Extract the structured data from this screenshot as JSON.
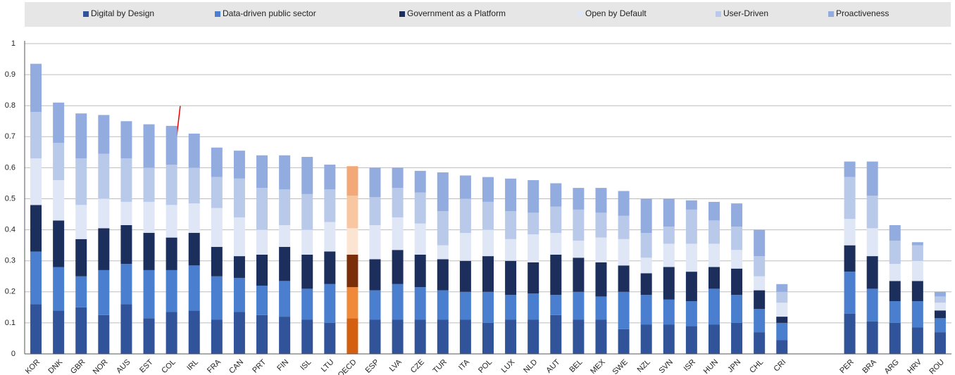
{
  "chart_data": {
    "type": "stacked_bar",
    "categories": [
      "KOR",
      "DNK",
      "GBR",
      "NOR",
      "AUS",
      "EST",
      "COL",
      "IRL",
      "FRA",
      "CAN",
      "PRT",
      "FIN",
      "ISL",
      "LTU",
      "OECD",
      "ESP",
      "LVA",
      "CZE",
      "TUR",
      "ITA",
      "POL",
      "LUX",
      "NLD",
      "AUT",
      "BEL",
      "MEX",
      "SWE",
      "NZL",
      "SVN",
      "ISR",
      "HUN",
      "JPN",
      "CHL",
      "CRI",
      null,
      null,
      "PER",
      "BRA",
      "ARG",
      "HRV",
      "ROU"
    ],
    "highlight": "OECD",
    "series": [
      {
        "name": "Digital by Design",
        "color": "#31539a",
        "highlight_color": "#d45f10",
        "values": [
          0.16,
          0.14,
          0.15,
          0.125,
          0.16,
          0.115,
          0.135,
          0.14,
          0.11,
          0.135,
          0.125,
          0.12,
          0.11,
          0.1,
          0.115,
          0.11,
          0.11,
          0.11,
          0.11,
          0.11,
          0.1,
          0.11,
          0.11,
          0.125,
          0.11,
          0.11,
          0.08,
          0.095,
          0.095,
          0.09,
          0.095,
          0.1,
          0.07,
          0.045,
          null,
          null,
          0.13,
          0.105,
          0.1,
          0.085,
          0.07
        ]
      },
      {
        "name": "Data-driven public sector",
        "color": "#4a7fd0",
        "highlight_color": "#f08a3a",
        "values": [
          0.17,
          0.14,
          0.1,
          0.145,
          0.13,
          0.155,
          0.135,
          0.145,
          0.14,
          0.11,
          0.095,
          0.115,
          0.1,
          0.125,
          0.1,
          0.095,
          0.115,
          0.105,
          0.095,
          0.09,
          0.1,
          0.08,
          0.085,
          0.065,
          0.09,
          0.075,
          0.12,
          0.095,
          0.08,
          0.08,
          0.115,
          0.09,
          0.075,
          0.055,
          null,
          null,
          0.135,
          0.105,
          0.07,
          0.085,
          0.045
        ]
      },
      {
        "name": "Government as a Platform",
        "color": "#1c2f5c",
        "highlight_color": "#7a2e0a",
        "values": [
          0.15,
          0.15,
          0.12,
          0.135,
          0.125,
          0.12,
          0.105,
          0.105,
          0.095,
          0.07,
          0.1,
          0.11,
          0.11,
          0.105,
          0.105,
          0.1,
          0.11,
          0.105,
          0.1,
          0.1,
          0.115,
          0.11,
          0.1,
          0.13,
          0.11,
          0.11,
          0.085,
          0.07,
          0.105,
          0.095,
          0.07,
          0.085,
          0.06,
          0.02,
          null,
          null,
          0.085,
          0.105,
          0.065,
          0.065,
          0.025
        ]
      },
      {
        "name": "Open by Default",
        "color": "#dfe6f5",
        "highlight_color": "#fce4d2",
        "values": [
          0.15,
          0.13,
          0.11,
          0.095,
          0.075,
          0.1,
          0.105,
          0.095,
          0.125,
          0.125,
          0.08,
          0.07,
          0.08,
          0.095,
          0.085,
          0.11,
          0.105,
          0.1,
          0.045,
          0.09,
          0.085,
          0.07,
          0.09,
          0.07,
          0.055,
          0.08,
          0.085,
          0.05,
          0.075,
          0.09,
          0.075,
          0.06,
          0.045,
          0.045,
          null,
          null,
          0.085,
          0.09,
          0.055,
          0.065,
          0.025
        ]
      },
      {
        "name": "User-Driven",
        "color": "#b9c9ea",
        "highlight_color": "#f8c6a0",
        "values": [
          0.15,
          0.12,
          0.15,
          0.145,
          0.14,
          0.11,
          0.13,
          0.115,
          0.1,
          0.125,
          0.135,
          0.115,
          0.115,
          0.105,
          0.105,
          0.09,
          0.095,
          0.1,
          0.11,
          0.11,
          0.09,
          0.09,
          0.07,
          0.085,
          0.1,
          0.08,
          0.075,
          0.08,
          0.055,
          0.11,
          0.075,
          0.075,
          0.065,
          0.035,
          null,
          null,
          0.135,
          0.105,
          0.075,
          0.05,
          0.02
        ]
      },
      {
        "name": "Proactiveness",
        "color": "#93ace0",
        "highlight_color": "#f3a878",
        "values": [
          0.155,
          0.13,
          0.145,
          0.125,
          0.12,
          0.14,
          0.125,
          0.11,
          0.095,
          0.09,
          0.105,
          0.11,
          0.12,
          0.08,
          0.095,
          0.095,
          0.065,
          0.07,
          0.125,
          0.075,
          0.08,
          0.105,
          0.105,
          0.075,
          0.07,
          0.08,
          0.08,
          0.11,
          0.09,
          0.03,
          0.06,
          0.075,
          0.085,
          0.025,
          null,
          null,
          0.05,
          0.11,
          0.05,
          0.01,
          0.015
        ]
      }
    ],
    "ylim": [
      0,
      1
    ],
    "yticks": [
      0,
      0.1,
      0.2,
      0.3,
      0.4,
      0.5,
      0.6,
      0.7,
      0.8,
      0.9,
      1
    ],
    "grid": true
  }
}
